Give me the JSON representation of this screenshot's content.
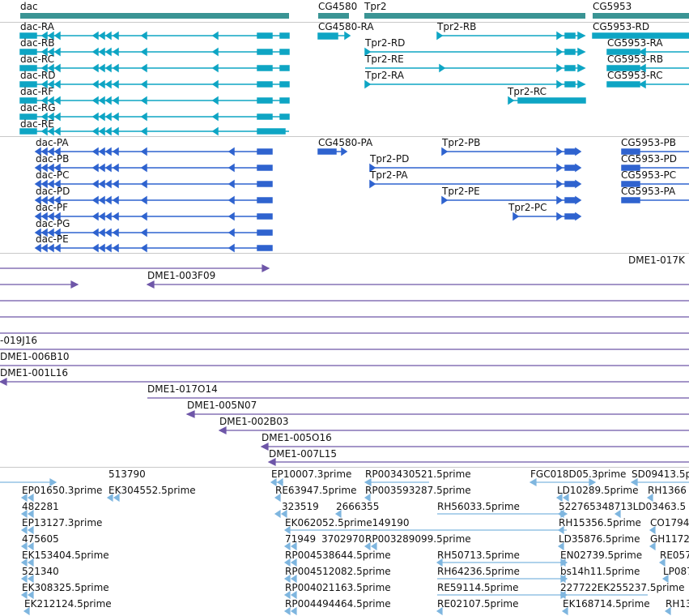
{
  "colors": {
    "gene": "#3a9494",
    "rna": "#0ea5c4",
    "protein": "#2f63cf",
    "clone": "#6e56a8",
    "est": "#7fb6df",
    "separator": "#c8c8c8"
  },
  "genes": [
    {
      "label": "dac"
    },
    {
      "label": "CG4580"
    },
    {
      "label": "Tpr2"
    },
    {
      "label": "CG5953"
    }
  ],
  "transcripts": [
    {
      "label": "dac-RA"
    },
    {
      "label": "dac-RB"
    },
    {
      "label": "dac-RC"
    },
    {
      "label": "dac-RD"
    },
    {
      "label": "dac-RF"
    },
    {
      "label": "dac-RG"
    },
    {
      "label": "dac-RE"
    },
    {
      "label": "CG4580-RA"
    },
    {
      "label": "Tpr2-RB"
    },
    {
      "label": "Tpr2-RD"
    },
    {
      "label": "Tpr2-RE"
    },
    {
      "label": "Tpr2-RA"
    },
    {
      "label": "Tpr2-RC"
    },
    {
      "label": "CG5953-RD"
    },
    {
      "label": "CG5953-RA"
    },
    {
      "label": "CG5953-RB"
    },
    {
      "label": "CG5953-RC"
    }
  ],
  "proteins": [
    {
      "label": "dac-PA"
    },
    {
      "label": "dac-PB"
    },
    {
      "label": "dac-PC"
    },
    {
      "label": "dac-PD"
    },
    {
      "label": "dac-PF"
    },
    {
      "label": "dac-PG"
    },
    {
      "label": "dac-PE"
    },
    {
      "label": "CG4580-PA"
    },
    {
      "label": "Tpr2-PB"
    },
    {
      "label": "Tpr2-PD"
    },
    {
      "label": "Tpr2-PA"
    },
    {
      "label": "Tpr2-PE"
    },
    {
      "label": "Tpr2-PC"
    },
    {
      "label": "CG5953-PB"
    },
    {
      "label": "CG5953-PD"
    },
    {
      "label": "CG5953-PC"
    },
    {
      "label": "CG5953-PA"
    }
  ],
  "clones": [
    {
      "label": ""
    },
    {
      "label": "DME1-017K"
    },
    {
      "label": "DME1-003F09"
    },
    {
      "label": ""
    },
    {
      "label": "-019J16"
    },
    {
      "label": "DME1-006B10"
    },
    {
      "label": "DME1-001L16"
    },
    {
      "label": "DME1-017O14"
    },
    {
      "label": "DME1-005N07"
    },
    {
      "label": "DME1-002B03"
    },
    {
      "label": "DME1-005O16"
    },
    {
      "label": "DME1-007L15"
    }
  ],
  "ests": [
    {
      "label": "513790"
    },
    {
      "label": "EP10007.3prime"
    },
    {
      "label": "RP003430521.5prime"
    },
    {
      "label": "FGC018D05.3prime"
    },
    {
      "label": "SD09413.5p"
    },
    {
      "label": "EP01650.3prime"
    },
    {
      "label": "EK304552.5prime"
    },
    {
      "label": "RE63947.5prime"
    },
    {
      "label": "RP003593287.5prime"
    },
    {
      "label": "LD10289.5prime"
    },
    {
      "label": "RH1366"
    },
    {
      "label": "482281"
    },
    {
      "label": "323519"
    },
    {
      "label": "2666355"
    },
    {
      "label": "RH56033.5prime"
    },
    {
      "label": "522765348713LD03463.5"
    },
    {
      "label": "EP13127.3prime"
    },
    {
      "label": "EK062052.5prime149190"
    },
    {
      "label": "RH15356.5prime"
    },
    {
      "label": "CO1794"
    },
    {
      "label": "475605"
    },
    {
      "label": "71949"
    },
    {
      "label": "3702970"
    },
    {
      "label": "RP003289099.5prime"
    },
    {
      "label": "LD35876.5prime"
    },
    {
      "label": "GH1172"
    },
    {
      "label": "EK153404.5prime"
    },
    {
      "label": "RP004538644.5prime"
    },
    {
      "label": "RH50713.5prime"
    },
    {
      "label": "EN02739.5prime"
    },
    {
      "label": "RE057"
    },
    {
      "label": "521340"
    },
    {
      "label": "RP004512082.5prime"
    },
    {
      "label": "RH64236.5prime"
    },
    {
      "label": "bs14h11.5prime"
    },
    {
      "label": "LP087"
    },
    {
      "label": "EK308325.5prime"
    },
    {
      "label": "RP004021163.5prime"
    },
    {
      "label": "RE59114.5prime"
    },
    {
      "label": "227722EK255237.5prime"
    },
    {
      "label": "EK212124.5prime"
    },
    {
      "label": "RP004494464.5prime"
    },
    {
      "label": "RE02107.5prime"
    },
    {
      "label": "EK168714.5prime"
    },
    {
      "label": "RH13"
    }
  ]
}
